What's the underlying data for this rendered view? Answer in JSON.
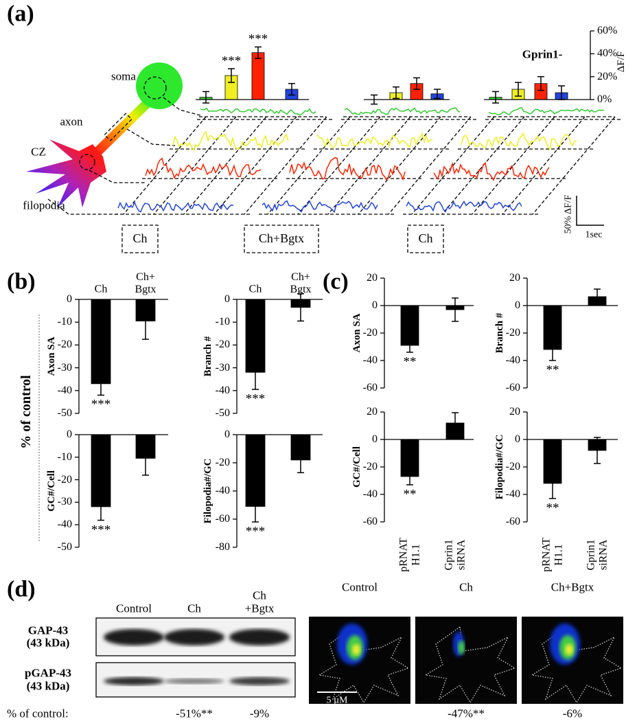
{
  "panel_labels": [
    "(a)",
    "(b)",
    "(c)",
    "(d)"
  ],
  "schematic": {
    "soma": "soma",
    "axon": "axon",
    "cz": "CZ",
    "filopodia": "filopodia",
    "conditions": [
      "Ch",
      "Ch+Bgtx",
      "Ch"
    ],
    "scale_y": "50% ΔF/F",
    "scale_x": "1sec"
  },
  "y_axis_title": "% of control",
  "chart_data": [
    {
      "type": "bar",
      "values": [
        2,
        21,
        41,
        9
      ],
      "errors": [
        5,
        6,
        5,
        5
      ],
      "colors": [
        "#33cc33",
        "#eeee22",
        "#ff2200",
        "#2244dd"
      ],
      "significance": [
        null,
        "***",
        "***",
        null
      ],
      "ylim": [
        0,
        60
      ]
    },
    {
      "type": "bar",
      "values": [
        0,
        6,
        14,
        5
      ],
      "errors": [
        4,
        5,
        5,
        4
      ],
      "colors": [
        "#33cc33",
        "#eeee22",
        "#ff2200",
        "#2244dd"
      ],
      "ylim": [
        0,
        60
      ]
    },
    {
      "type": "bar",
      "title": "Gprin1-",
      "ylabel": "ΔF/F",
      "values": [
        2,
        9,
        14,
        6
      ],
      "errors": [
        5,
        6,
        6,
        6
      ],
      "colors": [
        "#33cc33",
        "#eeee22",
        "#ff2200",
        "#2244dd"
      ],
      "ylim": [
        0,
        60
      ],
      "yticks": [
        {
          "value": 0,
          "label": "0%"
        },
        {
          "value": 20,
          "label": "20%"
        },
        {
          "value": 40,
          "label": "40%"
        },
        {
          "value": 60,
          "label": "60%"
        }
      ]
    },
    {
      "type": "bar",
      "ylabel": "Axon SA",
      "categories": [
        "Ch",
        "Ch+\nBgtx"
      ],
      "values": [
        -37,
        -9.5
      ],
      "errors": [
        5,
        8
      ],
      "significance": [
        "***",
        null
      ],
      "color": "#000000",
      "ylim": [
        -50,
        0
      ],
      "yticks": [
        0,
        -10,
        -20,
        -30,
        -40,
        -50
      ]
    },
    {
      "type": "bar",
      "ylabel": "Branch #",
      "categories": [
        "Ch",
        "Ch+\nBgtx"
      ],
      "values": [
        -32,
        -3.5
      ],
      "errors": [
        7.5,
        6
      ],
      "significance": [
        "***",
        null
      ],
      "color": "#000000",
      "ylim": [
        -50,
        0
      ],
      "yticks": [
        0,
        -10,
        -20,
        -30,
        -40,
        -50
      ]
    },
    {
      "type": "bar",
      "ylabel": "GC#/Cell",
      "values": [
        -32,
        -10.5
      ],
      "errors": [
        6,
        7.5
      ],
      "significance": [
        "***",
        null
      ],
      "color": "#000000",
      "ylim": [
        -50,
        0
      ],
      "yticks": [
        0,
        -10,
        -20,
        -30,
        -40,
        -50
      ]
    },
    {
      "type": "bar",
      "ylabel": "Filopodia#/GC",
      "values": [
        -51,
        -18
      ],
      "errors": [
        11,
        9
      ],
      "significance": [
        "***",
        null
      ],
      "color": "#000000",
      "ylim": [
        -80,
        0
      ],
      "yticks": [
        0,
        -20,
        -40,
        -60,
        -80
      ]
    },
    {
      "type": "bar",
      "ylabel": "Axon SA",
      "values": [
        -29,
        -3
      ],
      "errors": [
        5,
        8.5
      ],
      "significance": [
        "**",
        null
      ],
      "color": "#000000",
      "ylim": [
        -60,
        20
      ],
      "yticks": [
        20,
        0,
        -20,
        -40,
        -60
      ]
    },
    {
      "type": "bar",
      "ylabel": "Branch #",
      "values": [
        -32,
        6.5
      ],
      "errors": [
        8,
        5.5
      ],
      "significance": [
        "**",
        null
      ],
      "color": "#000000",
      "ylim": [
        -60,
        20
      ],
      "yticks": [
        20,
        0,
        -20,
        -40,
        -60
      ]
    },
    {
      "type": "bar",
      "ylabel": "GC#/Cell",
      "categories": [
        "pRNAT\nH1.1",
        "Gprin1\nsiRNA"
      ],
      "values": [
        -27,
        12
      ],
      "errors": [
        6,
        7.5
      ],
      "significance": [
        "**",
        null
      ],
      "color": "#000000",
      "ylim": [
        -60,
        20
      ],
      "yticks": [
        20,
        0,
        -20,
        -40,
        -60
      ]
    },
    {
      "type": "bar",
      "ylabel": "Filopodia#/GC",
      "categories": [
        "pRNAT\nH1.1",
        "Gprin1\nsiRNA"
      ],
      "values": [
        -32,
        -8
      ],
      "errors": [
        11,
        9.5
      ],
      "significance": [
        "**",
        null
      ],
      "color": "#000000",
      "ylim": [
        -60,
        20
      ],
      "yticks": [
        20,
        0,
        -20,
        -40,
        -60
      ]
    }
  ],
  "blot": {
    "columns": [
      "Control",
      "Ch",
      "Ch\n+Bgtx"
    ],
    "rows": [
      "GAP-43\n(43 kDa)",
      "pGAP-43\n(43 kDa)"
    ],
    "footer_label": "% of control:",
    "footer_values": [
      "-51%**",
      "-9%"
    ]
  },
  "imaging": {
    "columns": [
      "Control",
      "Ch",
      "Ch+Bgtx"
    ],
    "scale_bar": "5 µM",
    "footer_values": [
      "-47%**",
      "-6%"
    ]
  }
}
